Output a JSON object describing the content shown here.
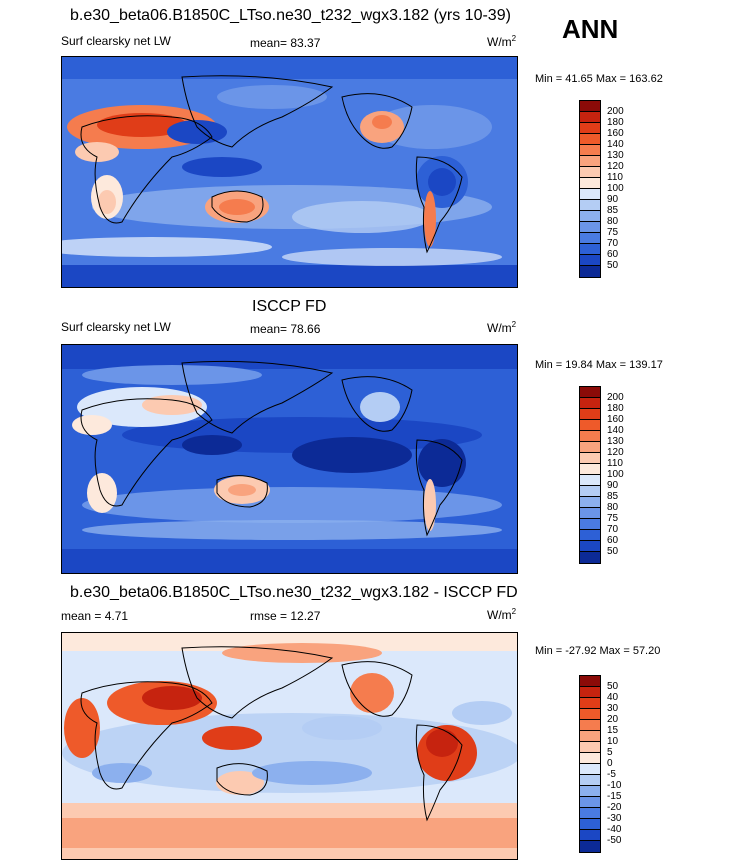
{
  "corner_label": "ANN",
  "panels": [
    {
      "title": "b.e30_beta06.B1850C_LTso.ne30_t232_wgx3.182 (yrs 10-39)",
      "variable": "Surf clearsky net LW",
      "stat_left": "mean=  83.37",
      "stat_mid": "",
      "units": "W/m",
      "units_exp": "2",
      "minmax": "Min =  41.65 Max = 163.62"
    },
    {
      "title": "ISCCP FD",
      "variable": "Surf clearsky net LW",
      "stat_left": "mean=  78.66",
      "stat_mid": "",
      "units": "W/m",
      "units_exp": "2",
      "minmax": "Min =  19.84 Max = 139.17"
    },
    {
      "title": "b.e30_beta06.B1850C_LTso.ne30_t232_wgx3.182 - ISCCP FD",
      "variable": "mean =   4.71",
      "stat_left": "",
      "stat_mid": "rmse =  12.27",
      "units": "W/m",
      "units_exp": "2",
      "minmax": "Min = -27.92 Max =  57.20"
    }
  ],
  "chart_data": [
    {
      "type": "heatmap",
      "title": "b.e30_beta06.B1850C_LTso.ne30_t232_wgx3.182 (yrs 10-39)",
      "variable": "Surf clearsky net LW",
      "mean": 83.37,
      "min": 41.65,
      "max": 163.62,
      "units": "W/m2",
      "colorbar_levels": [
        200,
        180,
        160,
        140,
        130,
        120,
        110,
        100,
        90,
        85,
        80,
        75,
        70,
        60,
        50
      ],
      "colorbar_colors": [
        "#8b0b08",
        "#c6230f",
        "#e03d18",
        "#ee5a2a",
        "#f57c4e",
        "#f9a37e",
        "#fccab1",
        "#fde9dc",
        "#dbe8fb",
        "#b4cdf4",
        "#8cb0ee",
        "#6b95e8",
        "#4a7be2",
        "#2d60d6",
        "#1b47c4",
        "#0c2a96"
      ]
    },
    {
      "type": "heatmap",
      "title": "ISCCP FD",
      "variable": "Surf clearsky net LW",
      "mean": 78.66,
      "min": 19.84,
      "max": 139.17,
      "units": "W/m2",
      "colorbar_levels": [
        200,
        180,
        160,
        140,
        130,
        120,
        110,
        100,
        90,
        85,
        80,
        75,
        70,
        60,
        50
      ],
      "colorbar_colors": [
        "#8b0b08",
        "#c6230f",
        "#e03d18",
        "#ee5a2a",
        "#f57c4e",
        "#f9a37e",
        "#fccab1",
        "#fde9dc",
        "#dbe8fb",
        "#b4cdf4",
        "#8cb0ee",
        "#6b95e8",
        "#4a7be2",
        "#2d60d6",
        "#1b47c4",
        "#0c2a96"
      ]
    },
    {
      "type": "heatmap",
      "title": "b.e30_beta06.B1850C_LTso.ne30_t232_wgx3.182 - ISCCP FD",
      "mean": 4.71,
      "rmse": 12.27,
      "min": -27.92,
      "max": 57.2,
      "units": "W/m2",
      "colorbar_levels": [
        50,
        40,
        30,
        20,
        15,
        10,
        5,
        0,
        -5,
        -10,
        -15,
        -20,
        -30,
        -40,
        -50
      ],
      "colorbar_colors": [
        "#8b0b08",
        "#c6230f",
        "#e03d18",
        "#ee5a2a",
        "#f57c4e",
        "#f9a37e",
        "#fccab1",
        "#fde9dc",
        "#dbe8fb",
        "#b4cdf4",
        "#8cb0ee",
        "#6b95e8",
        "#4a7be2",
        "#2d60d6",
        "#1b47c4",
        "#0c2a96"
      ]
    }
  ]
}
